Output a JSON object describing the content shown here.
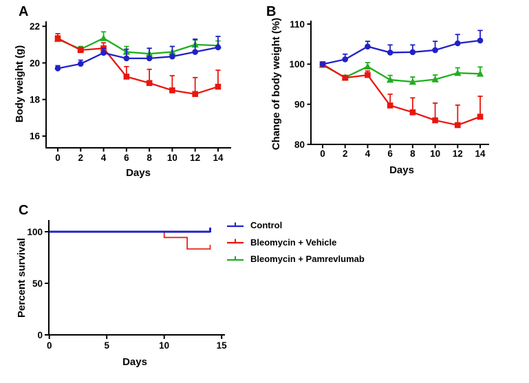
{
  "colors": {
    "control": "#2121c8",
    "vehicle": "#e8170e",
    "pamrevlumab": "#1faf1f",
    "axis": "#000000",
    "background": "#ffffff"
  },
  "legend": {
    "items": [
      {
        "label": "Control",
        "color": "#2121c8",
        "key": "survival-line"
      },
      {
        "label": "Bleomycin + Vehicle",
        "color": "#e8170e",
        "key": "survival-line"
      },
      {
        "label": "Bleomycin + Pamrevlumab",
        "color": "#1faf1f",
        "key": "survival-line"
      }
    ]
  },
  "chart_data": [
    {
      "id": "A",
      "panel_label": "A",
      "type": "line",
      "title": "",
      "xlabel": "Days",
      "ylabel": "Body weight (g)",
      "x": [
        0,
        2,
        4,
        6,
        8,
        10,
        12,
        14
      ],
      "xticks": [
        0,
        2,
        4,
        6,
        8,
        10,
        12,
        14
      ],
      "yticks": [
        22,
        20,
        18,
        16
      ],
      "xlim": [
        0,
        15
      ],
      "ylim": [
        15.5,
        22
      ],
      "grid": false,
      "series": [
        {
          "name": "Control",
          "marker": "circle",
          "color": "#2121c8",
          "values": [
            19.7,
            19.95,
            20.55,
            20.25,
            20.25,
            20.35,
            20.6,
            20.85
          ],
          "errors_up": [
            0.15,
            0.2,
            0.25,
            0.5,
            0.55,
            0.55,
            0.7,
            0.6
          ]
        },
        {
          "name": "Bleomycin + Vehicle",
          "marker": "square",
          "color": "#e8170e",
          "values": [
            21.35,
            20.7,
            20.8,
            19.25,
            18.9,
            18.5,
            18.3,
            18.7
          ],
          "errors_up": [
            0.25,
            0.15,
            0.3,
            0.55,
            0.75,
            0.8,
            0.9,
            0.9
          ]
        },
        {
          "name": "Bleomycin + Pamrevlumab",
          "marker": "triangle",
          "color": "#1faf1f",
          "values": [
            21.3,
            20.75,
            21.35,
            20.6,
            20.5,
            20.6,
            21.0,
            20.95
          ],
          "errors_up": [
            0,
            0.15,
            0.35,
            0.3,
            0.3,
            0.3,
            0.25,
            0.25
          ]
        }
      ]
    },
    {
      "id": "B",
      "panel_label": "B",
      "type": "line",
      "title": "",
      "xlabel": "Days",
      "ylabel": "Change of body weight (%)",
      "x": [
        0,
        2,
        4,
        6,
        8,
        10,
        12,
        14
      ],
      "xticks": [
        0,
        2,
        4,
        6,
        8,
        10,
        12,
        14
      ],
      "yticks": [
        110,
        100,
        90,
        80
      ],
      "xlim": [
        0,
        15
      ],
      "ylim": [
        80,
        110
      ],
      "grid": false,
      "series": [
        {
          "name": "Control",
          "marker": "circle",
          "color": "#2121c8",
          "values": [
            100,
            101.2,
            104.4,
            102.9,
            103.0,
            103.5,
            105.2,
            105.9
          ],
          "errors_up": [
            0.4,
            1.3,
            1.3,
            1.9,
            1.8,
            2.2,
            2.2,
            2.5
          ]
        },
        {
          "name": "Bleomycin + Vehicle",
          "marker": "square",
          "color": "#e8170e",
          "values": [
            100,
            96.6,
            97.3,
            89.7,
            88.0,
            86.0,
            84.8,
            86.9
          ],
          "errors_up": [
            0.3,
            0.5,
            1.0,
            2.8,
            3.6,
            4.3,
            5.0,
            5.1
          ]
        },
        {
          "name": "Bleomycin + Pamrevlumab",
          "marker": "triangle",
          "color": "#1faf1f",
          "values": [
            99.8,
            96.7,
            99.4,
            96.1,
            95.6,
            96.2,
            97.8,
            97.6
          ],
          "errors_up": [
            0,
            0.5,
            1.0,
            1.1,
            1.2,
            1.1,
            1.3,
            1.7
          ]
        }
      ]
    },
    {
      "id": "C",
      "panel_label": "C",
      "type": "survival",
      "title": "",
      "xlabel": "Days",
      "ylabel": "Percent survival",
      "xticks": [
        0,
        5,
        10,
        15
      ],
      "yticks": [
        100,
        50,
        0
      ],
      "xlim": [
        0,
        15
      ],
      "ylim": [
        0,
        100
      ],
      "grid": false,
      "series": [
        {
          "name": "Control",
          "color": "#2121c8",
          "steps": [
            [
              0,
              100
            ],
            [
              14,
              100
            ]
          ],
          "censor_x": [
            14
          ]
        },
        {
          "name": "Bleomycin + Vehicle",
          "color": "#e8170e",
          "steps": [
            [
              0,
              100
            ],
            [
              10,
              100
            ],
            [
              10,
              94.4
            ],
            [
              12,
              94.4
            ],
            [
              12,
              83.3
            ],
            [
              14,
              83.3
            ]
          ],
          "censor_x": [
            14
          ]
        },
        {
          "name": "Bleomycin + Pamrevlumab",
          "color": "#1faf1f",
          "steps": [
            [
              0,
              100
            ],
            [
              14,
              100
            ]
          ],
          "censor_x": [
            14
          ]
        }
      ]
    }
  ]
}
